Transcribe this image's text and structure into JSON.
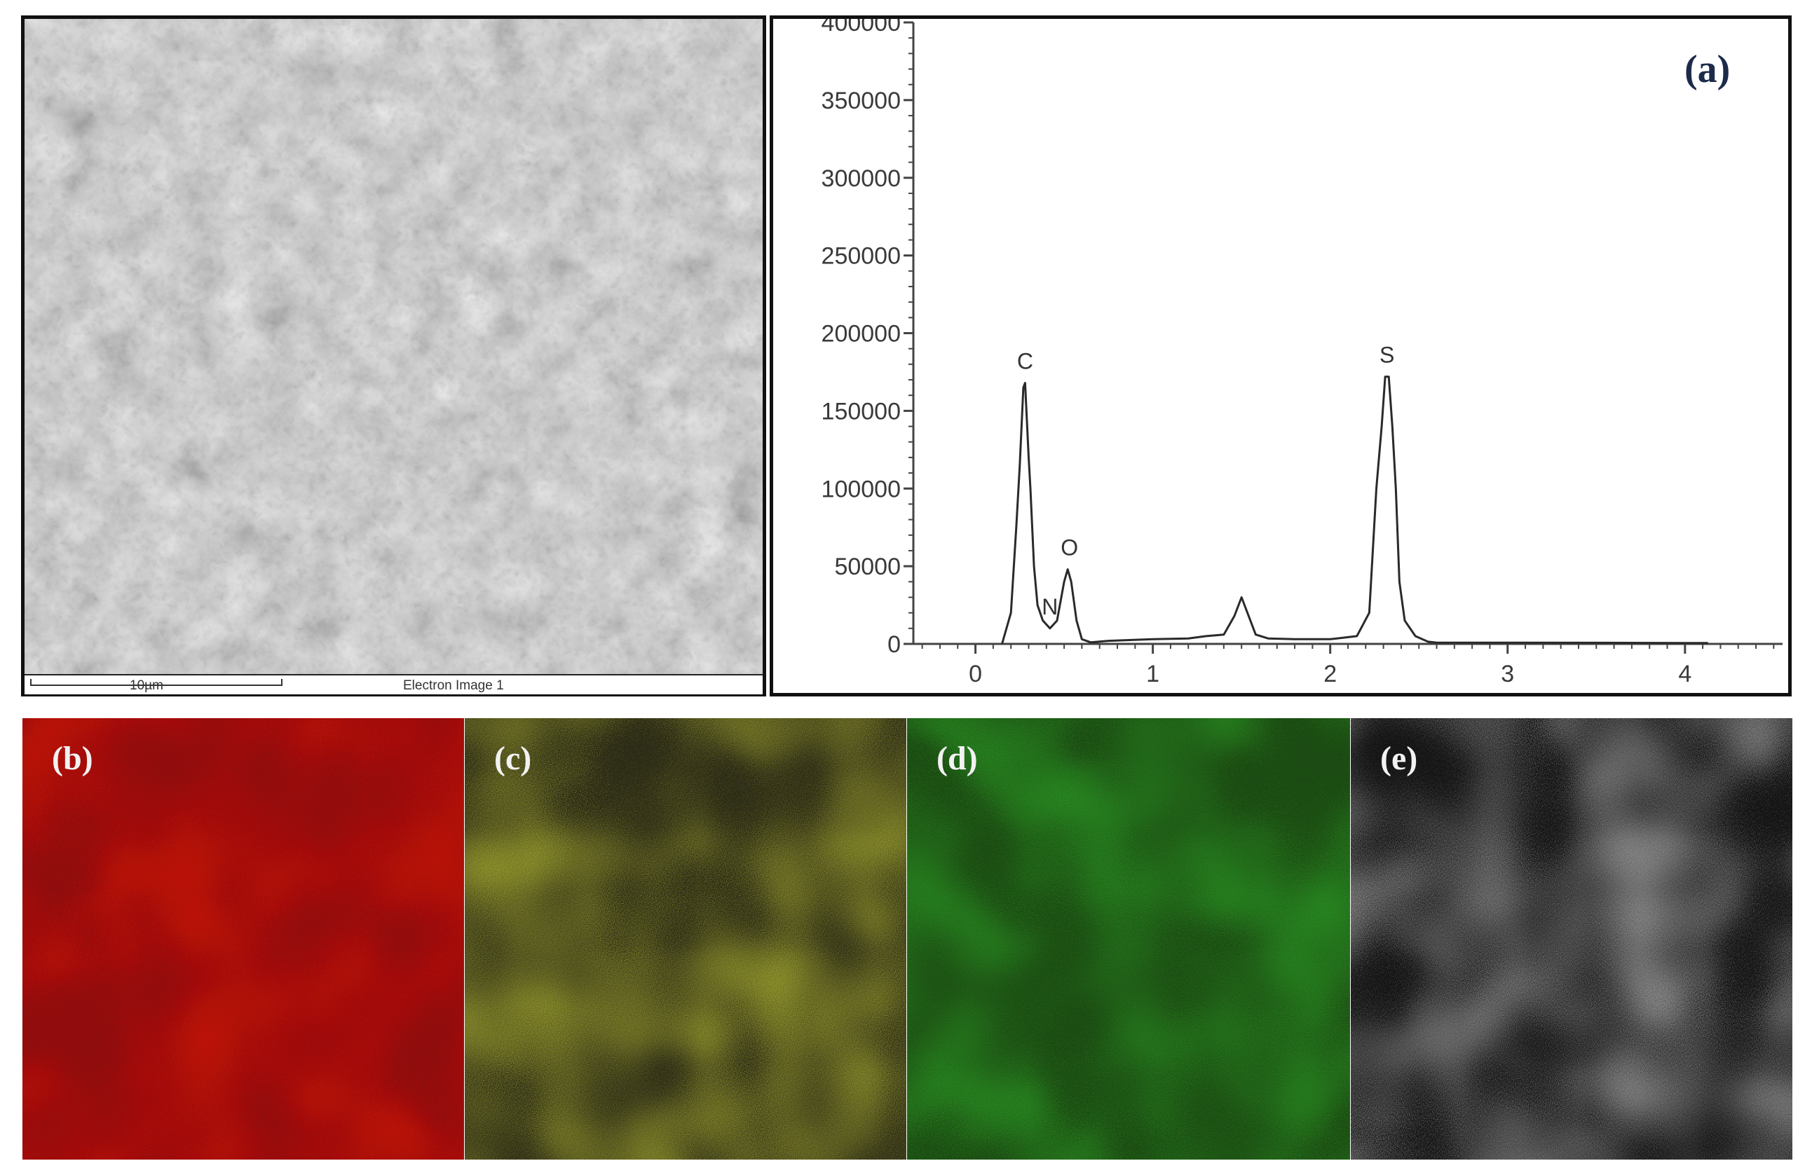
{
  "sem_image": {
    "scale_label": "10µm",
    "caption": "Electron Image 1"
  },
  "panel_labels": {
    "a": "(a)",
    "b": "(b)",
    "c": "(c)",
    "d": "(d)",
    "e": "(e)"
  },
  "chart_data": {
    "type": "line",
    "title": "",
    "xlabel": "",
    "ylabel": "",
    "xlim": [
      -0.35,
      4.55
    ],
    "ylim": [
      0,
      400000
    ],
    "x_ticks": [
      0,
      1,
      2,
      3,
      4
    ],
    "y_ticks": [
      0,
      50000,
      100000,
      150000,
      200000,
      250000,
      300000,
      350000,
      400000
    ],
    "x_tick_labels": [
      "0",
      "1",
      "2",
      "3",
      "4"
    ],
    "y_tick_labels": [
      "0",
      "50000",
      "100000",
      "150000",
      "200000",
      "250000",
      "300000",
      "350000",
      "400000"
    ],
    "grid": false,
    "series": [
      {
        "x": [
          0.15,
          0.2,
          0.23,
          0.25,
          0.27,
          0.28,
          0.3,
          0.31,
          0.33,
          0.35,
          0.38,
          0.42,
          0.46,
          0.5,
          0.52,
          0.54,
          0.57,
          0.6,
          0.65,
          0.75,
          1.0,
          1.2,
          1.3,
          1.4,
          1.46,
          1.5,
          1.54,
          1.58,
          1.65,
          1.8,
          2.0,
          2.15,
          2.22,
          2.26,
          2.29,
          2.31,
          2.33,
          2.35,
          2.37,
          2.39,
          2.42,
          2.48,
          2.55,
          2.6,
          3.0,
          3.5,
          4.0,
          4.13
        ],
        "y": [
          0,
          20000,
          75000,
          115000,
          165000,
          168000,
          120000,
          100000,
          50000,
          25000,
          15000,
          10000,
          15000,
          40000,
          48000,
          40000,
          15000,
          3000,
          1000,
          2000,
          3000,
          3500,
          5000,
          6000,
          18000,
          30000,
          18000,
          6000,
          3500,
          3000,
          3000,
          5000,
          20000,
          100000,
          140000,
          172000,
          172000,
          140000,
          100000,
          40000,
          15000,
          5000,
          1500,
          800,
          800,
          700,
          600,
          600
        ]
      }
    ],
    "peak_labels": [
      {
        "text": "C",
        "x": 0.28,
        "y": 168000
      },
      {
        "text": "N",
        "x": 0.42,
        "y": 10000
      },
      {
        "text": "O",
        "x": 0.53,
        "y": 48000
      },
      {
        "text": "S",
        "x": 2.32,
        "y": 172000
      }
    ]
  },
  "maps": [
    {
      "label_key": "b",
      "color": "#e3120b",
      "dark": "#8e0d0d"
    },
    {
      "label_key": "c",
      "color": "#d9e03a",
      "dark": "#2c2b17"
    },
    {
      "label_key": "d",
      "color": "#30b02a",
      "dark": "#1b4a12"
    },
    {
      "label_key": "e",
      "color": "#d8d8d8",
      "dark": "#151515"
    }
  ]
}
